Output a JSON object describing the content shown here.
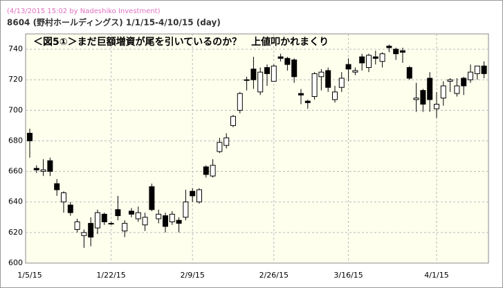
{
  "header": {
    "stamp": "(4/13/2015 15:02 by Nadeshiko Investment)",
    "title": "8604 (野村ホールディングス) 1/1/15-4/10/15 (day)"
  },
  "chart_data": {
    "type": "candlestick",
    "title": "＜図5①＞まだ巨額増資が尾を引いているのか？　上値叩かれまくり",
    "categories": [
      "1/5/15",
      null,
      null,
      null,
      null,
      null,
      null,
      null,
      null,
      null,
      null,
      null,
      "1/22/15",
      null,
      null,
      null,
      null,
      null,
      null,
      null,
      null,
      null,
      null,
      null,
      "2/9/15",
      null,
      null,
      null,
      null,
      null,
      null,
      null,
      null,
      null,
      null,
      null,
      "2/26/15",
      null,
      null,
      null,
      null,
      null,
      null,
      null,
      null,
      null,
      null,
      "3/16/15",
      null,
      null,
      null,
      null,
      null,
      null,
      null,
      null,
      null,
      null,
      null,
      null,
      "4/1/15",
      null,
      null,
      null,
      null,
      null,
      null,
      null
    ],
    "open": [
      685,
      662,
      660,
      667,
      652,
      640,
      638,
      622,
      618,
      626,
      623,
      632,
      626,
      635,
      621,
      634,
      629,
      625,
      650,
      629,
      631,
      627,
      628,
      630,
      647,
      640,
      663,
      657,
      673,
      677,
      690,
      700,
      720,
      727,
      712,
      728,
      719,
      735,
      734,
      733,
      711,
      706,
      709,
      722,
      726,
      707,
      715,
      730,
      725,
      735,
      728,
      735,
      732,
      742,
      740,
      739,
      728,
      707,
      713,
      721,
      701,
      708,
      719,
      711,
      721,
      720,
      724,
      729
    ],
    "high": [
      688,
      664,
      668,
      669,
      655,
      647,
      640,
      629,
      622,
      630,
      635,
      633,
      627,
      644,
      628,
      636,
      637,
      633,
      652,
      635,
      633,
      634,
      630,
      648,
      649,
      649,
      664,
      668,
      682,
      685,
      697,
      712,
      722,
      735,
      728,
      730,
      730,
      737,
      735,
      734,
      714,
      707,
      725,
      727,
      728,
      716,
      725,
      734,
      728,
      737,
      737,
      739,
      738,
      743,
      741,
      741,
      729,
      718,
      714,
      725,
      712,
      719,
      721,
      721,
      722,
      730,
      729,
      732
    ],
    "low": [
      669,
      659,
      657,
      657,
      644,
      633,
      631,
      620,
      610,
      611,
      619,
      625,
      625,
      628,
      617,
      630,
      627,
      621,
      634,
      626,
      620,
      625,
      620,
      628,
      640,
      639,
      656,
      656,
      672,
      675,
      689,
      698,
      713,
      714,
      710,
      716,
      719,
      732,
      726,
      718,
      704,
      701,
      707,
      713,
      712,
      705,
      712,
      719,
      723,
      726,
      725,
      730,
      728,
      738,
      733,
      731,
      720,
      699,
      699,
      699,
      695,
      703,
      712,
      709,
      710,
      718,
      720,
      721
    ],
    "close": [
      680,
      661,
      661,
      660,
      648,
      646,
      633,
      627,
      620,
      617,
      633,
      627,
      626,
      631,
      626,
      632,
      633,
      630,
      635,
      632,
      624,
      632,
      626,
      640,
      644,
      648,
      658,
      664,
      679,
      682,
      696,
      711,
      720,
      720,
      725,
      724,
      729,
      734,
      730,
      722,
      710,
      705,
      724,
      725,
      715,
      712,
      721,
      727,
      726,
      731,
      736,
      734,
      737,
      741,
      737,
      738,
      721,
      708,
      704,
      707,
      704,
      716,
      720,
      716,
      716,
      725,
      729,
      724
    ],
    "up_color": "#ffffff",
    "down_color": "#000000",
    "background": "#ffffee",
    "ylim": [
      600,
      750
    ],
    "yticks": [
      600,
      620,
      640,
      660,
      680,
      700,
      720,
      740
    ],
    "grid": true
  }
}
